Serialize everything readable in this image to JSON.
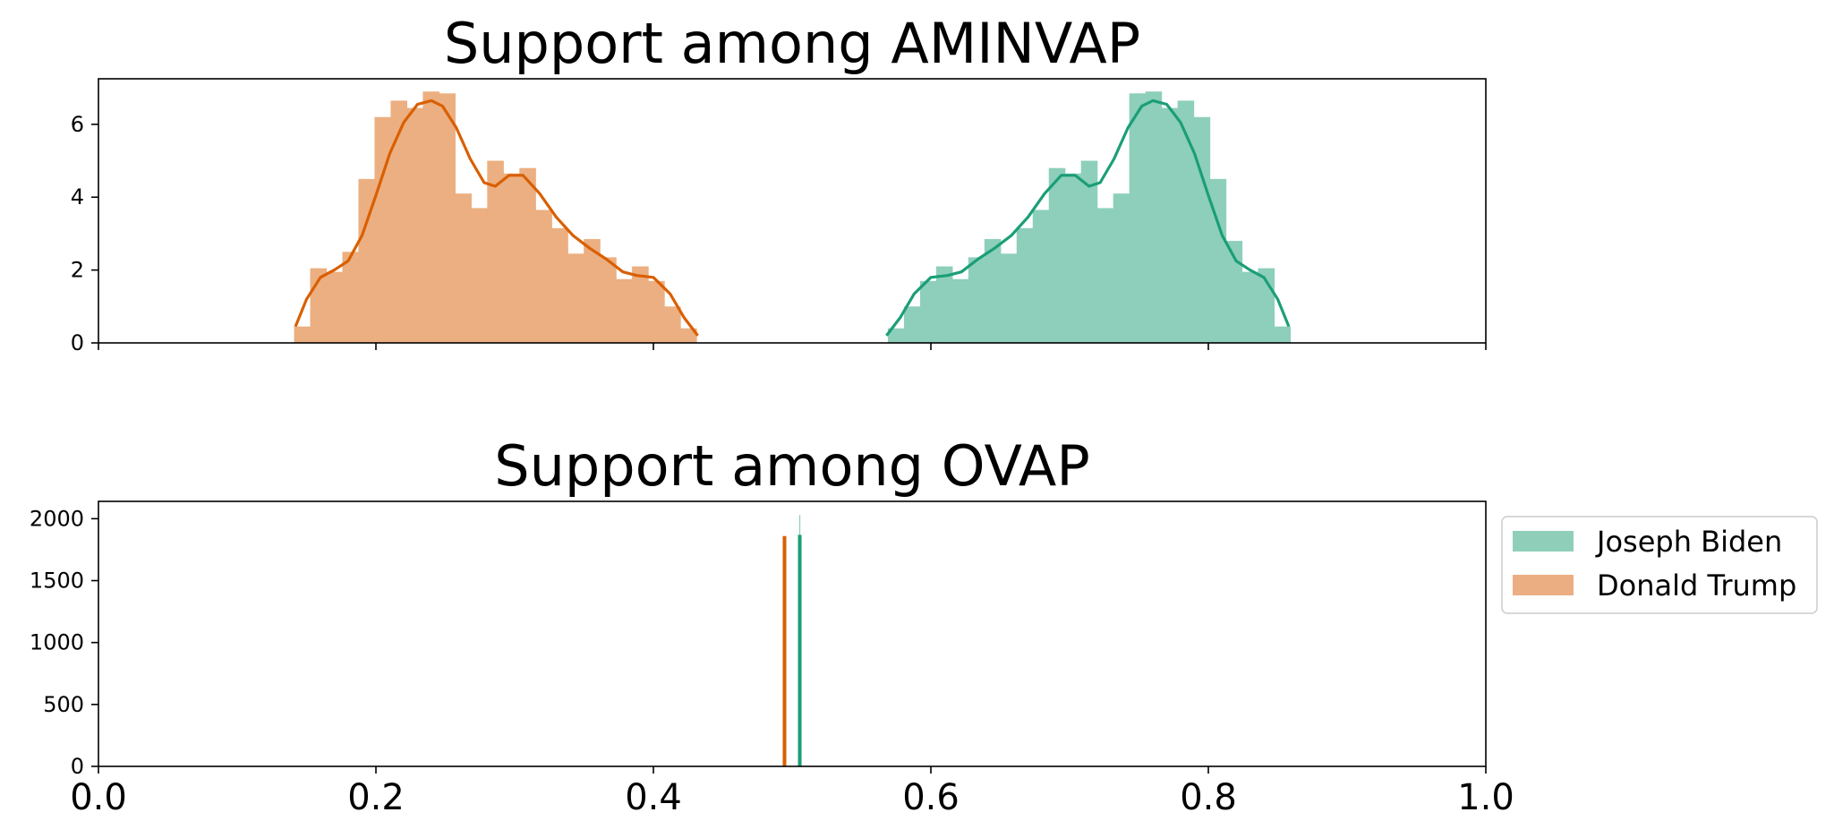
{
  "chart_data": [
    {
      "type": "histogram",
      "title": "Support among AMINVAP",
      "xlabel": "",
      "ylabel": "",
      "xlim": [
        0.0,
        1.0
      ],
      "ylim": [
        0,
        7.25
      ],
      "yticks": [
        0,
        2,
        4,
        6
      ],
      "xticks": [
        0.0,
        0.2,
        0.4,
        0.6,
        0.8,
        1.0
      ],
      "show_xtick_labels": false,
      "grid": false,
      "series": [
        {
          "name": "Joseph Biden",
          "color": "#1b9e77",
          "bin_width": 0.0116,
          "bins": [
            {
              "x": 0.569,
              "y": 0.4
            },
            {
              "x": 0.5806,
              "y": 1.0
            },
            {
              "x": 0.5922,
              "y": 1.7
            },
            {
              "x": 0.6038,
              "y": 2.1
            },
            {
              "x": 0.6154,
              "y": 1.75
            },
            {
              "x": 0.627,
              "y": 2.35
            },
            {
              "x": 0.6386,
              "y": 2.85
            },
            {
              "x": 0.6502,
              "y": 2.45
            },
            {
              "x": 0.6618,
              "y": 3.15
            },
            {
              "x": 0.6734,
              "y": 3.65
            },
            {
              "x": 0.685,
              "y": 4.8
            },
            {
              "x": 0.6966,
              "y": 4.65
            },
            {
              "x": 0.7082,
              "y": 5.0
            },
            {
              "x": 0.7198,
              "y": 3.7
            },
            {
              "x": 0.7314,
              "y": 4.1
            },
            {
              "x": 0.743,
              "y": 6.85
            },
            {
              "x": 0.7546,
              "y": 6.9
            },
            {
              "x": 0.7662,
              "y": 6.45
            },
            {
              "x": 0.7778,
              "y": 6.65
            },
            {
              "x": 0.7894,
              "y": 6.2
            },
            {
              "x": 0.801,
              "y": 4.5
            },
            {
              "x": 0.8126,
              "y": 2.8
            },
            {
              "x": 0.8242,
              "y": 1.95
            },
            {
              "x": 0.8358,
              "y": 2.05
            },
            {
              "x": 0.8474,
              "y": 0.45
            }
          ],
          "kde": [
            [
              0.568,
              0.2
            ],
            [
              0.578,
              0.7
            ],
            [
              0.588,
              1.35
            ],
            [
              0.6,
              1.8
            ],
            [
              0.612,
              1.85
            ],
            [
              0.622,
              1.95
            ],
            [
              0.634,
              2.3
            ],
            [
              0.646,
              2.6
            ],
            [
              0.658,
              2.95
            ],
            [
              0.67,
              3.45
            ],
            [
              0.682,
              4.1
            ],
            [
              0.694,
              4.6
            ],
            [
              0.704,
              4.6
            ],
            [
              0.714,
              4.3
            ],
            [
              0.722,
              4.4
            ],
            [
              0.732,
              5.05
            ],
            [
              0.742,
              5.9
            ],
            [
              0.752,
              6.5
            ],
            [
              0.76,
              6.65
            ],
            [
              0.77,
              6.55
            ],
            [
              0.78,
              6.05
            ],
            [
              0.79,
              5.2
            ],
            [
              0.8,
              4.05
            ],
            [
              0.81,
              2.95
            ],
            [
              0.82,
              2.25
            ],
            [
              0.83,
              2.0
            ],
            [
              0.84,
              1.8
            ],
            [
              0.85,
              1.2
            ],
            [
              0.858,
              0.45
            ]
          ]
        },
        {
          "name": "Donald Trump",
          "color": "#d95f02",
          "bin_width": 0.0116,
          "bins": [
            {
              "x": 0.141,
              "y": 0.45
            },
            {
              "x": 0.1526,
              "y": 2.05
            },
            {
              "x": 0.1642,
              "y": 1.95
            },
            {
              "x": 0.1758,
              "y": 2.5
            },
            {
              "x": 0.1874,
              "y": 4.5
            },
            {
              "x": 0.199,
              "y": 6.2
            },
            {
              "x": 0.2106,
              "y": 6.65
            },
            {
              "x": 0.2222,
              "y": 6.45
            },
            {
              "x": 0.2338,
              "y": 6.9
            },
            {
              "x": 0.2454,
              "y": 6.85
            },
            {
              "x": 0.257,
              "y": 4.1
            },
            {
              "x": 0.2686,
              "y": 3.7
            },
            {
              "x": 0.2802,
              "y": 5.0
            },
            {
              "x": 0.2918,
              "y": 4.65
            },
            {
              "x": 0.3034,
              "y": 4.8
            },
            {
              "x": 0.315,
              "y": 3.65
            },
            {
              "x": 0.3266,
              "y": 3.15
            },
            {
              "x": 0.3382,
              "y": 2.45
            },
            {
              "x": 0.3498,
              "y": 2.85
            },
            {
              "x": 0.3614,
              "y": 2.35
            },
            {
              "x": 0.373,
              "y": 1.75
            },
            {
              "x": 0.3846,
              "y": 2.1
            },
            {
              "x": 0.3962,
              "y": 1.7
            },
            {
              "x": 0.4078,
              "y": 1.0
            },
            {
              "x": 0.4194,
              "y": 0.4
            }
          ],
          "kde": [
            [
              0.142,
              0.45
            ],
            [
              0.15,
              1.2
            ],
            [
              0.16,
              1.8
            ],
            [
              0.17,
              2.0
            ],
            [
              0.18,
              2.25
            ],
            [
              0.19,
              2.95
            ],
            [
              0.2,
              4.05
            ],
            [
              0.21,
              5.2
            ],
            [
              0.22,
              6.05
            ],
            [
              0.23,
              6.55
            ],
            [
              0.24,
              6.65
            ],
            [
              0.248,
              6.5
            ],
            [
              0.258,
              5.9
            ],
            [
              0.268,
              5.05
            ],
            [
              0.278,
              4.4
            ],
            [
              0.286,
              4.3
            ],
            [
              0.296,
              4.6
            ],
            [
              0.306,
              4.6
            ],
            [
              0.318,
              4.1
            ],
            [
              0.33,
              3.45
            ],
            [
              0.342,
              2.95
            ],
            [
              0.354,
              2.6
            ],
            [
              0.366,
              2.3
            ],
            [
              0.378,
              1.95
            ],
            [
              0.388,
              1.85
            ],
            [
              0.4,
              1.8
            ],
            [
              0.412,
              1.35
            ],
            [
              0.422,
              0.7
            ],
            [
              0.432,
              0.2
            ]
          ]
        }
      ]
    },
    {
      "type": "histogram",
      "title": "Support among OVAP",
      "xlabel": "",
      "ylabel": "",
      "xlim": [
        0.0,
        1.0
      ],
      "ylim": [
        0,
        2140
      ],
      "yticks": [
        0,
        500,
        1000,
        1500,
        2000
      ],
      "xticks": [
        0.0,
        0.2,
        0.4,
        0.6,
        0.8,
        1.0
      ],
      "xtick_labels": [
        "0.0",
        "0.2",
        "0.4",
        "0.6",
        "0.8",
        "1.0"
      ],
      "grid": false,
      "legend_position": "outside-right-top",
      "series": [
        {
          "name": "Joseph Biden",
          "color": "#1b9e77",
          "spike_x": 0.5055,
          "spike_height": 2030,
          "kde_height": 1870
        },
        {
          "name": "Donald Trump",
          "color": "#d95f02",
          "spike_x": 0.4945,
          "spike_height": 1860,
          "kde_height": 1860
        }
      ]
    }
  ],
  "legend": {
    "items": [
      {
        "label": "Joseph Biden",
        "color": "#8fcfba"
      },
      {
        "label": "Donald Trump",
        "color": "#ebae82"
      }
    ]
  }
}
